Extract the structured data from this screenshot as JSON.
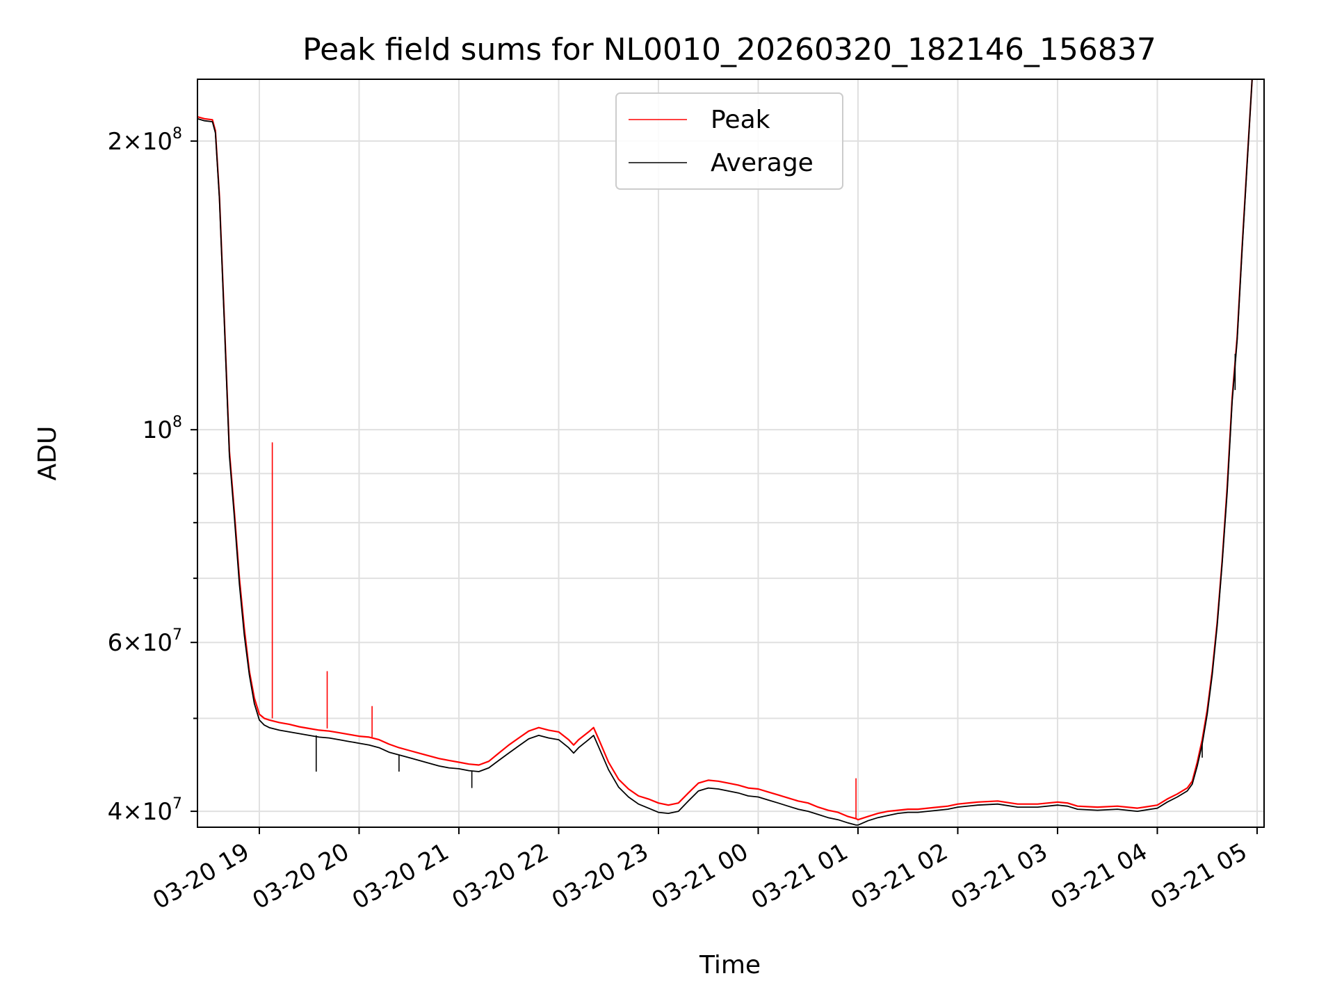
{
  "chart_data": {
    "type": "line",
    "title": "Peak field sums for NL0010_20260320_182146_156837",
    "xlabel": "Time",
    "ylabel": "ADU",
    "yscale": "log",
    "ylim": [
      38500000,
      232000000
    ],
    "xlim_hours": [
      18.38,
      29.07
    ],
    "grid": true,
    "legend_position": "upper center",
    "x_ticks": [
      {
        "hour": 19,
        "label": "03-20 19"
      },
      {
        "hour": 20,
        "label": "03-20 20"
      },
      {
        "hour": 21,
        "label": "03-20 21"
      },
      {
        "hour": 22,
        "label": "03-20 22"
      },
      {
        "hour": 23,
        "label": "03-20 23"
      },
      {
        "hour": 24,
        "label": "03-21 00"
      },
      {
        "hour": 25,
        "label": "03-21 01"
      },
      {
        "hour": 26,
        "label": "03-21 02"
      },
      {
        "hour": 27,
        "label": "03-21 03"
      },
      {
        "hour": 28,
        "label": "03-21 04"
      },
      {
        "hour": 29,
        "label": "03-21 05"
      }
    ],
    "y_major_ticks": [
      {
        "value": 40000000,
        "mant": "4",
        "exp": "7",
        "times": true
      },
      {
        "value": 60000000,
        "mant": "6",
        "exp": "7",
        "times": true
      },
      {
        "value": 100000000,
        "mant": "10",
        "exp": "8",
        "times": false
      },
      {
        "value": 200000000,
        "mant": "2",
        "exp": "8",
        "times": true
      }
    ],
    "y_minor_ticks": [
      50000000,
      70000000,
      80000000,
      90000000
    ],
    "series": [
      {
        "name": "Peak",
        "color": "#ff0000",
        "points": [
          [
            18.38,
            212000000
          ],
          [
            18.45,
            211000000
          ],
          [
            18.53,
            210500000
          ],
          [
            18.56,
            205000000
          ],
          [
            18.6,
            175000000
          ],
          [
            18.65,
            130000000
          ],
          [
            18.7,
            95000000
          ],
          [
            18.75,
            82000000
          ],
          [
            18.8,
            70000000
          ],
          [
            18.85,
            62000000
          ],
          [
            18.9,
            56000000
          ],
          [
            18.95,
            52500000
          ],
          [
            19.0,
            50500000
          ],
          [
            19.05,
            50000000
          ],
          [
            19.1,
            49800000
          ],
          [
            19.2,
            49500000
          ],
          [
            19.3,
            49300000
          ],
          [
            19.4,
            49000000
          ],
          [
            19.5,
            48800000
          ],
          [
            19.6,
            48600000
          ],
          [
            19.7,
            48500000
          ],
          [
            19.8,
            48300000
          ],
          [
            19.9,
            48100000
          ],
          [
            20.0,
            47900000
          ],
          [
            20.1,
            47800000
          ],
          [
            20.2,
            47500000
          ],
          [
            20.3,
            47000000
          ],
          [
            20.4,
            46600000
          ],
          [
            20.5,
            46300000
          ],
          [
            20.6,
            46000000
          ],
          [
            20.7,
            45700000
          ],
          [
            20.8,
            45400000
          ],
          [
            20.9,
            45200000
          ],
          [
            21.0,
            45000000
          ],
          [
            21.1,
            44800000
          ],
          [
            21.2,
            44700000
          ],
          [
            21.3,
            45100000
          ],
          [
            21.4,
            46000000
          ],
          [
            21.5,
            46900000
          ],
          [
            21.6,
            47700000
          ],
          [
            21.7,
            48500000
          ],
          [
            21.8,
            48900000
          ],
          [
            21.9,
            48600000
          ],
          [
            22.0,
            48400000
          ],
          [
            22.1,
            47500000
          ],
          [
            22.15,
            46900000
          ],
          [
            22.2,
            47500000
          ],
          [
            22.3,
            48400000
          ],
          [
            22.35,
            48900000
          ],
          [
            22.4,
            47600000
          ],
          [
            22.5,
            45000000
          ],
          [
            22.6,
            43200000
          ],
          [
            22.7,
            42200000
          ],
          [
            22.8,
            41500000
          ],
          [
            22.9,
            41200000
          ],
          [
            23.0,
            40800000
          ],
          [
            23.1,
            40600000
          ],
          [
            23.2,
            40800000
          ],
          [
            23.3,
            41800000
          ],
          [
            23.4,
            42800000
          ],
          [
            23.5,
            43100000
          ],
          [
            23.6,
            43000000
          ],
          [
            23.7,
            42800000
          ],
          [
            23.8,
            42600000
          ],
          [
            23.9,
            42300000
          ],
          [
            24.0,
            42200000
          ],
          [
            24.1,
            41900000
          ],
          [
            24.2,
            41600000
          ],
          [
            24.3,
            41300000
          ],
          [
            24.4,
            41000000
          ],
          [
            24.5,
            40800000
          ],
          [
            24.6,
            40400000
          ],
          [
            24.7,
            40100000
          ],
          [
            24.8,
            39900000
          ],
          [
            24.9,
            39500000
          ],
          [
            24.98,
            39300000
          ],
          [
            25.0,
            39200000
          ],
          [
            25.1,
            39500000
          ],
          [
            25.2,
            39800000
          ],
          [
            25.3,
            40000000
          ],
          [
            25.4,
            40100000
          ],
          [
            25.5,
            40200000
          ],
          [
            25.6,
            40200000
          ],
          [
            25.7,
            40300000
          ],
          [
            25.8,
            40400000
          ],
          [
            25.9,
            40500000
          ],
          [
            26.0,
            40700000
          ],
          [
            26.2,
            40900000
          ],
          [
            26.4,
            41000000
          ],
          [
            26.6,
            40700000
          ],
          [
            26.8,
            40700000
          ],
          [
            27.0,
            40900000
          ],
          [
            27.1,
            40800000
          ],
          [
            27.2,
            40500000
          ],
          [
            27.4,
            40400000
          ],
          [
            27.6,
            40500000
          ],
          [
            27.8,
            40300000
          ],
          [
            28.0,
            40600000
          ],
          [
            28.1,
            41200000
          ],
          [
            28.2,
            41700000
          ],
          [
            28.3,
            42300000
          ],
          [
            28.35,
            43000000
          ],
          [
            28.4,
            45000000
          ],
          [
            28.45,
            47500000
          ],
          [
            28.5,
            51000000
          ],
          [
            28.55,
            56000000
          ],
          [
            28.6,
            63000000
          ],
          [
            28.65,
            73000000
          ],
          [
            28.7,
            87000000
          ],
          [
            28.75,
            108000000
          ],
          [
            28.8,
            125000000
          ],
          [
            28.85,
            155000000
          ],
          [
            28.9,
            190000000
          ],
          [
            28.95,
            232000000
          ]
        ]
      },
      {
        "name": "Average",
        "color": "#000000",
        "points": [
          [
            18.38,
            211000000
          ],
          [
            18.45,
            210000000
          ],
          [
            18.53,
            209500000
          ],
          [
            18.56,
            204000000
          ],
          [
            18.6,
            174000000
          ],
          [
            18.65,
            129000000
          ],
          [
            18.7,
            94000000
          ],
          [
            18.75,
            81000000
          ],
          [
            18.8,
            69000000
          ],
          [
            18.85,
            61000000
          ],
          [
            18.9,
            55500000
          ],
          [
            18.95,
            51800000
          ],
          [
            19.0,
            49800000
          ],
          [
            19.05,
            49200000
          ],
          [
            19.1,
            48900000
          ],
          [
            19.2,
            48600000
          ],
          [
            19.3,
            48400000
          ],
          [
            19.4,
            48200000
          ],
          [
            19.5,
            48000000
          ],
          [
            19.6,
            47800000
          ],
          [
            19.7,
            47700000
          ],
          [
            19.8,
            47500000
          ],
          [
            19.9,
            47300000
          ],
          [
            20.0,
            47100000
          ],
          [
            20.1,
            46900000
          ],
          [
            20.2,
            46600000
          ],
          [
            20.3,
            46100000
          ],
          [
            20.4,
            45800000
          ],
          [
            20.5,
            45500000
          ],
          [
            20.6,
            45200000
          ],
          [
            20.7,
            44900000
          ],
          [
            20.8,
            44600000
          ],
          [
            20.9,
            44400000
          ],
          [
            21.0,
            44300000
          ],
          [
            21.1,
            44100000
          ],
          [
            21.2,
            44000000
          ],
          [
            21.3,
            44400000
          ],
          [
            21.4,
            45200000
          ],
          [
            21.5,
            46000000
          ],
          [
            21.6,
            46800000
          ],
          [
            21.7,
            47600000
          ],
          [
            21.8,
            48000000
          ],
          [
            21.9,
            47700000
          ],
          [
            22.0,
            47500000
          ],
          [
            22.1,
            46600000
          ],
          [
            22.15,
            46000000
          ],
          [
            22.2,
            46600000
          ],
          [
            22.3,
            47500000
          ],
          [
            22.35,
            48000000
          ],
          [
            22.4,
            46700000
          ],
          [
            22.5,
            44200000
          ],
          [
            22.6,
            42400000
          ],
          [
            22.7,
            41400000
          ],
          [
            22.8,
            40700000
          ],
          [
            22.9,
            40300000
          ],
          [
            23.0,
            39900000
          ],
          [
            23.1,
            39800000
          ],
          [
            23.2,
            40000000
          ],
          [
            23.3,
            41000000
          ],
          [
            23.4,
            42000000
          ],
          [
            23.5,
            42300000
          ],
          [
            23.6,
            42200000
          ],
          [
            23.7,
            42000000
          ],
          [
            23.8,
            41800000
          ],
          [
            23.9,
            41500000
          ],
          [
            24.0,
            41400000
          ],
          [
            24.1,
            41100000
          ],
          [
            24.2,
            40800000
          ],
          [
            24.3,
            40500000
          ],
          [
            24.4,
            40200000
          ],
          [
            24.5,
            40000000
          ],
          [
            24.6,
            39700000
          ],
          [
            24.7,
            39400000
          ],
          [
            24.8,
            39200000
          ],
          [
            24.9,
            38900000
          ],
          [
            24.98,
            38700000
          ],
          [
            25.0,
            38700000
          ],
          [
            25.1,
            39100000
          ],
          [
            25.2,
            39400000
          ],
          [
            25.3,
            39600000
          ],
          [
            25.4,
            39800000
          ],
          [
            25.5,
            39900000
          ],
          [
            25.6,
            39900000
          ],
          [
            25.7,
            40000000
          ],
          [
            25.8,
            40100000
          ],
          [
            25.9,
            40200000
          ],
          [
            26.0,
            40400000
          ],
          [
            26.2,
            40600000
          ],
          [
            26.4,
            40700000
          ],
          [
            26.6,
            40400000
          ],
          [
            26.8,
            40400000
          ],
          [
            27.0,
            40600000
          ],
          [
            27.1,
            40500000
          ],
          [
            27.2,
            40200000
          ],
          [
            27.4,
            40100000
          ],
          [
            27.6,
            40200000
          ],
          [
            27.8,
            40000000
          ],
          [
            28.0,
            40300000
          ],
          [
            28.1,
            40900000
          ],
          [
            28.2,
            41400000
          ],
          [
            28.3,
            42000000
          ],
          [
            28.35,
            42700000
          ],
          [
            28.4,
            44600000
          ],
          [
            28.45,
            47000000
          ],
          [
            28.5,
            50500000
          ],
          [
            28.55,
            55500000
          ],
          [
            28.6,
            62500000
          ],
          [
            28.65,
            72500000
          ],
          [
            28.7,
            86000000
          ],
          [
            28.75,
            107000000
          ],
          [
            28.8,
            124000000
          ],
          [
            28.85,
            154000000
          ],
          [
            28.9,
            189000000
          ],
          [
            28.95,
            232000000
          ]
        ]
      }
    ],
    "spikes": [
      {
        "series": "Peak",
        "hour": 19.13,
        "base": 50000000,
        "top": 97000000
      },
      {
        "series": "Peak",
        "hour": 19.68,
        "base": 48800000,
        "top": 56000000
      },
      {
        "series": "Peak",
        "hour": 20.13,
        "base": 47800000,
        "top": 51500000
      },
      {
        "series": "Peak",
        "hour": 24.98,
        "base": 39300000,
        "top": 43300000
      },
      {
        "series": "Average",
        "hour": 19.57,
        "base": 48000000,
        "top": 44000000
      },
      {
        "series": "Average",
        "hour": 20.4,
        "base": 45800000,
        "top": 44000000
      },
      {
        "series": "Average",
        "hour": 21.13,
        "base": 44100000,
        "top": 42300000
      },
      {
        "series": "Average",
        "hour": 28.45,
        "base": 47000000,
        "top": 45500000
      },
      {
        "series": "Average",
        "hour": 28.78,
        "base": 120000000,
        "top": 110000000
      }
    ]
  }
}
